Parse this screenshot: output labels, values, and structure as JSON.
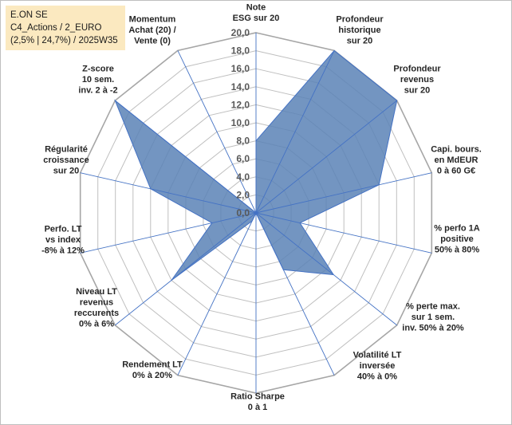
{
  "header": {
    "line1": "E.ON SE",
    "line2": "C4_Actions / 2_EURO",
    "line3": "(2,5% | 24,7%) / 2025W35"
  },
  "chart_data": {
    "type": "radar",
    "rmin": 0,
    "rmax": 20,
    "ticks": [
      "0,0",
      "2,0",
      "4,0",
      "6,0",
      "8,0",
      "10,0",
      "12,0",
      "14,0",
      "16,0",
      "18,0",
      "20,0"
    ],
    "grid": true,
    "fill_color": "#5a82b6",
    "line_color": "#4472c4",
    "axes": [
      {
        "label": [
          "Note",
          "ESG sur 20"
        ],
        "value": 8
      },
      {
        "label": [
          "Profondeur",
          "historique",
          "sur 20"
        ],
        "value": 20
      },
      {
        "label": [
          "Profondeur",
          "revenus",
          "sur 20"
        ],
        "value": 20
      },
      {
        "label": [
          "Capi. bours.",
          "en MdEUR",
          "0 à 60 G€"
        ],
        "value": 14
      },
      {
        "label": [
          "% perfo 1A",
          "positive",
          "50% à 80%"
        ],
        "value": 5
      },
      {
        "label": [
          "% perte max.",
          "sur 1 sem.",
          "inv. 50% à 20%"
        ],
        "value": 11
      },
      {
        "label": [
          "Volatilité LT",
          "inversée",
          "40% à 0%"
        ],
        "value": 7
      },
      {
        "label": [
          "Ratio Sharpe",
          "0 à 1"
        ],
        "value": 0
      },
      {
        "label": [
          "Rendement LT",
          "0% à 20%"
        ],
        "value": 1
      },
      {
        "label": [
          "Niveau LT",
          "revenus",
          "reccurents",
          "0% à 6%"
        ],
        "value": 12
      },
      {
        "label": [
          "Perfo. LT",
          "vs index",
          "-8% à 12%"
        ],
        "value": 5
      },
      {
        "label": [
          "Régularité",
          "croissance",
          "sur 20"
        ],
        "value": 12
      },
      {
        "label": [
          "Z-score",
          "10 sem.",
          "inv. 2 à -2"
        ],
        "value": 20
      },
      {
        "label": [
          "Momentum",
          "Achat (20) /",
          "Vente (0)"
        ],
        "value": 0
      }
    ]
  }
}
